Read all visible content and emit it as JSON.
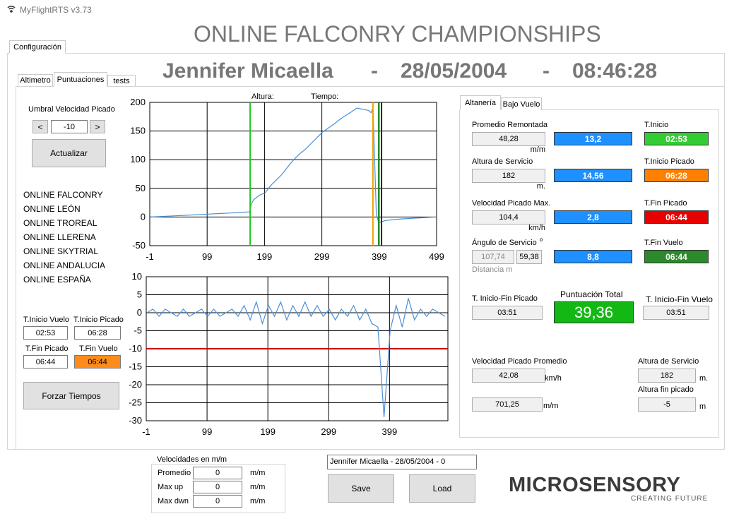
{
  "window": {
    "title": "MyFlightRTS v3.73",
    "tab": "Configuración"
  },
  "header": {
    "title": "ONLINE FALCONRY CHAMPIONSHIPS",
    "pilot": "Jennifer Micaella",
    "separator": "-",
    "date": "28/05/2004",
    "time": "08:46:28"
  },
  "left_tabs": [
    "Altimetro",
    "Puntuaciones",
    "tests"
  ],
  "threshold": {
    "label": "Umbral Velocidad Picado",
    "decrease": "<",
    "value": "-10",
    "increase": ">",
    "update": "Actualizar"
  },
  "championships": [
    "ONLINE FALCONRY",
    "ONLINE LEÓN",
    "ONLINE TROREAL",
    "ONLINE LLERENA",
    "ONLINE SKYTRIAL",
    "ONLINE ANDALUCIA",
    "ONLINE ESPAÑA"
  ],
  "times": {
    "start_flight_label": "T.Inicio Vuelo",
    "start_flight": "02:53",
    "start_dive_label": "T.Inicio Picado",
    "start_dive": "06:28",
    "end_dive_label": "T.Fin Picado",
    "end_dive": "06:44",
    "end_flight_label": "T.Fin Vuelo",
    "end_flight": "06:44",
    "force": "Forzar Tiempos"
  },
  "charts": [
    {
      "type": "line",
      "labels": [
        "Altura:",
        "Tiempo:"
      ],
      "grid": true,
      "xlim": [
        -1,
        499
      ],
      "xticks": [
        -1,
        99,
        199,
        299,
        399,
        499
      ],
      "ylim": [
        -50,
        200
      ],
      "yticks": [
        -50,
        0,
        50,
        100,
        150,
        200
      ],
      "series": [
        {
          "color": "#4a8fd8",
          "x": [
            0,
            20,
            40,
            60,
            80,
            100,
            120,
            140,
            160,
            173,
            176,
            180,
            190,
            200,
            210,
            220,
            230,
            240,
            250,
            260,
            270,
            280,
            290,
            300,
            310,
            320,
            330,
            340,
            350,
            360,
            370,
            380,
            385,
            388,
            391,
            394,
            398,
            410,
            430,
            460,
            499
          ],
          "values": [
            0,
            1,
            2,
            3,
            4,
            5,
            6,
            7,
            8,
            9,
            22,
            30,
            38,
            42,
            55,
            65,
            75,
            88,
            100,
            110,
            118,
            128,
            138,
            148,
            155,
            162,
            170,
            177,
            183,
            190,
            188,
            186,
            182,
            190,
            100,
            5,
            -10,
            -6,
            -4,
            -2,
            0
          ]
        }
      ],
      "markers": [
        {
          "x": 174,
          "color": "#22c522"
        },
        {
          "x": 388,
          "color": "#f0a000"
        },
        {
          "x": 398,
          "color": "#2b8a2b"
        },
        {
          "x": 403,
          "color": "#1a2a1a"
        }
      ]
    },
    {
      "type": "line",
      "grid": true,
      "xlim": [
        -1,
        495
      ],
      "xticks": [
        -1,
        99,
        199,
        299,
        399
      ],
      "ylim": [
        -30,
        10
      ],
      "yticks": [
        -30,
        -25,
        -20,
        -15,
        -10,
        -5,
        0,
        5,
        10
      ],
      "series": [
        {
          "color": "#4a8fd8",
          "x": [
            0,
            10,
            20,
            30,
            40,
            50,
            60,
            70,
            80,
            90,
            100,
            110,
            120,
            130,
            140,
            150,
            160,
            170,
            180,
            190,
            200,
            210,
            220,
            230,
            240,
            250,
            260,
            270,
            280,
            290,
            300,
            310,
            320,
            330,
            340,
            350,
            360,
            370,
            380,
            390,
            400,
            410,
            420,
            430,
            440,
            450,
            460,
            470,
            480,
            490
          ],
          "values": [
            0,
            1,
            -1,
            1,
            0,
            -1,
            1,
            -1,
            0,
            1,
            -1,
            1,
            -1,
            0,
            1,
            -1,
            2,
            -2,
            3,
            -3,
            2,
            -1,
            3,
            -2,
            2,
            -1,
            3,
            -1,
            2,
            -1,
            1,
            -2,
            1,
            -1,
            2,
            -2,
            1,
            -3,
            -4,
            -29,
            -5,
            2,
            -4,
            4,
            -2,
            1,
            -1,
            1,
            0,
            -1
          ]
        }
      ],
      "thresholds": [
        {
          "value": -10,
          "color": "#d00000"
        }
      ]
    }
  ],
  "stats": {
    "tabs": [
      "Altanería",
      "Bajo Vuelo"
    ],
    "rows": [
      {
        "label": "Promedio Remontada",
        "value": "48,28",
        "unit": "m/m",
        "score": "13,2",
        "time_label": "T.Inicio",
        "time": "02:53",
        "time_color": "#33cc33"
      },
      {
        "label": "Altura de Servicio",
        "value": "182",
        "unit": "m.",
        "score": "14,56",
        "time_label": "T.Inicio Picado",
        "time": "06:28",
        "time_color": "#ff8000"
      },
      {
        "label": "Velocidad Picado Max.",
        "value": "104,4",
        "unit": "km/h",
        "score": "2,8",
        "time_label": "T.Fin Picado",
        "time": "06:44",
        "time_color": "#e60000"
      },
      {
        "label": "Ángulo de Servicio",
        "unit": "º",
        "value": "107,74",
        "value2": "59,38",
        "note": "Distancia m",
        "score": "8,8",
        "time_label": "T.Fin Vuelo",
        "time": "06:44",
        "time_color": "#2b8a2b"
      }
    ],
    "dive_duration_label": "T. Inicio-Fin Picado",
    "dive_duration": "03:51",
    "total_label": "Puntuación Total",
    "total": "39,36",
    "flight_duration_label": "T. Inicio-Fin Vuelo",
    "flight_duration": "03:51",
    "avg_dive_speed_label": "Velocidad Picado Promedio",
    "avg_dive_speed": "42,08",
    "avg_dive_speed_unit": "km/h",
    "rate": "701,25",
    "rate_unit": "m/m",
    "service_altitude_label": "Altura de Servicio",
    "service_altitude": "182",
    "service_altitude_unit": "m.",
    "dive_end_altitude_label": "Altura fin picado",
    "dive_end_altitude": "-5",
    "dive_end_altitude_unit": "m"
  },
  "speeds": {
    "title": "Velocidades en m/m",
    "rows": [
      {
        "label": "Promedio",
        "value": "0",
        "unit": "m/m"
      },
      {
        "label": "Max up",
        "value": "0",
        "unit": "m/m"
      },
      {
        "label": "Max dwn",
        "value": "0",
        "unit": "m/m"
      }
    ]
  },
  "session": {
    "selected": "Jennifer Micaella   -   28/05/2004   -   0",
    "save": "Save",
    "load": "Load"
  },
  "logo": {
    "name": "MICROSENSORY",
    "tagline": "CREATING FUTURE"
  }
}
